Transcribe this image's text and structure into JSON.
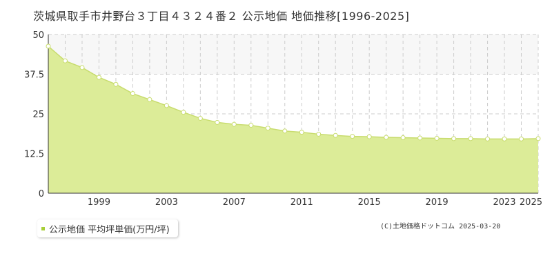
{
  "title": "茨城県取手市井野台３丁目４３２４番２ 公示地価 地価推移[1996-2025]",
  "credit": "(C)土地価格ドットコム 2025-03-20",
  "colors": {
    "fill": "#dcec98",
    "line": "#c8dc6e",
    "marker_fill": "#ffffff",
    "band": "#f7f7f7",
    "grid": "#cccccc",
    "legend_swatch": "#a8cf38"
  },
  "chart_data": {
    "type": "area",
    "title": "茨城県取手市井野台３丁目４３２４番２ 公示地価 地価推移[1996-2025]",
    "xlabel": "",
    "ylabel": "",
    "xlim": [
      1996,
      2025
    ],
    "ylim": [
      0,
      50
    ],
    "yticks": [
      "0",
      "12.5",
      "25",
      "37.5",
      "50"
    ],
    "xticks": [
      "1999",
      "2003",
      "2007",
      "2011",
      "2015",
      "2019",
      "2023",
      "2025"
    ],
    "grid": true,
    "legend_position": "bottom-left",
    "series": [
      {
        "name": "公示地価 平均坪単価(万円/坪)",
        "x": [
          1996,
          1997,
          1998,
          1999,
          2000,
          2001,
          2002,
          2003,
          2004,
          2005,
          2006,
          2007,
          2008,
          2009,
          2010,
          2011,
          2012,
          2013,
          2014,
          2015,
          2016,
          2017,
          2018,
          2019,
          2020,
          2021,
          2022,
          2023,
          2024,
          2025
        ],
        "values": [
          46.3,
          41.7,
          39.6,
          36.5,
          34.3,
          31.4,
          29.5,
          27.6,
          25.5,
          23.6,
          22.3,
          21.7,
          21.4,
          20.5,
          19.6,
          19.2,
          18.6,
          18.2,
          17.9,
          17.8,
          17.6,
          17.5,
          17.4,
          17.3,
          17.2,
          17.2,
          17.1,
          17.1,
          17.1,
          17.2
        ]
      }
    ]
  }
}
